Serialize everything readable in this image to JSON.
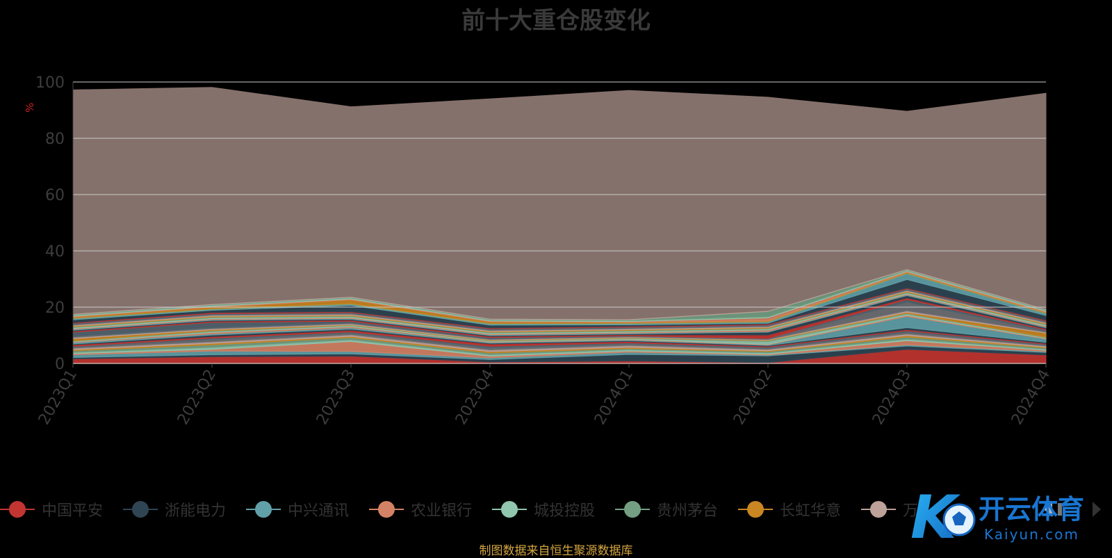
{
  "title": "前十大重仓股变化",
  "footer": "制图数据来自恒生聚源数据库",
  "watermark": {
    "brand_cn": "开云体育",
    "brand_en": "Kaiyun.com",
    "logo_text": "K"
  },
  "colors": {
    "background": "#000000",
    "remainder_fill": "#85716b",
    "grid": "#cccccc",
    "axis_text": "#3d3d3d",
    "unit_color": "#cc2222"
  },
  "legend": [
    {
      "name": "中国平安",
      "color": "#c23531"
    },
    {
      "name": "浙能电力",
      "color": "#2f4554"
    },
    {
      "name": "中兴通讯",
      "color": "#61a0a8"
    },
    {
      "name": "农业银行",
      "color": "#d48265"
    },
    {
      "name": "城投控股",
      "color": "#91c7ae"
    },
    {
      "name": "贵州茅台",
      "color": "#749f83"
    },
    {
      "name": "长虹华意",
      "color": "#ca8622"
    },
    {
      "name": "万..."
    }
  ],
  "chart_data": {
    "type": "area",
    "title": "前十大重仓股变化",
    "ylabel": "%",
    "xlabel": "",
    "ylim": [
      0,
      100
    ],
    "yticks": [
      0,
      20,
      40,
      60,
      80,
      100
    ],
    "grid": true,
    "legend_position": "bottom",
    "categories": [
      "2023Q1",
      "2023Q2",
      "2023Q3",
      "2023Q4",
      "2024Q1",
      "2024Q2",
      "2024Q3",
      "2024Q4"
    ],
    "series": [
      {
        "color": "#c23531",
        "values": [
          1.6,
          2.4,
          2.6,
          0.5,
          0.9,
          0.3,
          5.0,
          3.0
        ]
      },
      {
        "color": "#2f4554",
        "values": [
          0.5,
          0.7,
          0.8,
          0.9,
          2.3,
          2.4,
          1.2,
          0.9
        ]
      },
      {
        "color": "#61a0a8",
        "values": [
          1.0,
          1.3,
          0.9,
          0.6,
          0.8,
          0.3,
          0.4,
          0.4
        ]
      },
      {
        "color": "#d48265",
        "values": [
          0.4,
          0.6,
          3.5,
          0.6,
          0.4,
          0.3,
          1.5,
          0.4
        ]
      },
      {
        "color": "#91c7ae",
        "values": [
          0.4,
          0.7,
          0.6,
          0.5,
          0.5,
          0.4,
          0.5,
          0.3
        ]
      },
      {
        "color": "#749f83",
        "values": [
          0.6,
          0.9,
          0.8,
          0.6,
          0.4,
          0.5,
          0.8,
          0.5
        ]
      },
      {
        "color": "#ca8622",
        "values": [
          0.4,
          0.5,
          0.4,
          0.5,
          0.4,
          0.3,
          0.5,
          0.3
        ]
      },
      {
        "color": "#bda29a",
        "values": [
          0.5,
          0.6,
          0.6,
          0.6,
          0.7,
          0.5,
          0.6,
          0.4
        ]
      },
      {
        "color": "#6e7074",
        "values": [
          0.4,
          0.8,
          0.6,
          0.7,
          0.5,
          0.4,
          0.6,
          0.3
        ]
      },
      {
        "color": "#546570",
        "values": [
          0.3,
          0.5,
          0.4,
          0.6,
          0.4,
          0.4,
          0.5,
          0.3
        ]
      },
      {
        "color": "#c23531",
        "values": [
          0.5,
          0.5,
          0.6,
          0.8,
          0.5,
          0.3,
          0.4,
          0.3
        ]
      },
      {
        "color": "#2f4554",
        "values": [
          0.3,
          0.6,
          0.4,
          0.3,
          0.3,
          0.3,
          0.7,
          0.4
        ]
      },
      {
        "color": "#61a0a8",
        "values": [
          0.5,
          0.4,
          0.5,
          0.3,
          0.3,
          0.2,
          4.0,
          1.2
        ]
      },
      {
        "color": "#d48265",
        "values": [
          0.2,
          0.5,
          0.4,
          0.2,
          0.2,
          0.2,
          0.4,
          0.2
        ]
      },
      {
        "color": "#91c7ae",
        "values": [
          0.2,
          0.3,
          0.3,
          0.2,
          0.2,
          1.0,
          0.4,
          0.2
        ]
      },
      {
        "color": "#749f83",
        "values": [
          0.2,
          0.3,
          0.2,
          0.2,
          0.2,
          0.3,
          0.3,
          0.2
        ]
      },
      {
        "color": "#ca8622",
        "values": [
          0.8,
          0.4,
          0.2,
          0.2,
          0.2,
          0.2,
          0.4,
          1.5
        ]
      },
      {
        "color": "#bda29a",
        "values": [
          0.4,
          0.3,
          0.3,
          0.2,
          0.2,
          0.2,
          0.5,
          0.3
        ]
      },
      {
        "color": "#6e7074",
        "values": [
          0.3,
          0.3,
          0.3,
          0.2,
          0.2,
          0.2,
          3.0,
          0.4
        ]
      },
      {
        "color": "#546570",
        "values": [
          1.6,
          2.0,
          0.6,
          0.5,
          0.2,
          0.2,
          1.0,
          0.4
        ]
      },
      {
        "color": "#c23531",
        "values": [
          0.4,
          0.4,
          0.4,
          0.4,
          0.4,
          1.2,
          0.6,
          0.4
        ]
      },
      {
        "color": "#2f4554",
        "values": [
          0.3,
          0.3,
          0.3,
          0.3,
          0.3,
          1.0,
          0.8,
          0.4
        ]
      },
      {
        "color": "#61a0a8",
        "values": [
          0.3,
          0.3,
          0.3,
          0.3,
          0.3,
          0.3,
          0.3,
          0.3
        ]
      },
      {
        "color": "#d48265",
        "values": [
          0.3,
          0.3,
          0.3,
          0.3,
          0.3,
          0.5,
          0.3,
          0.3
        ]
      },
      {
        "color": "#91c7ae",
        "values": [
          0.3,
          0.3,
          0.3,
          0.3,
          0.3,
          0.3,
          0.3,
          0.3
        ]
      },
      {
        "color": "#749f83",
        "values": [
          0.3,
          0.3,
          0.3,
          0.3,
          0.3,
          0.3,
          0.3,
          0.3
        ]
      },
      {
        "color": "#ca8622",
        "values": [
          0.3,
          0.3,
          0.3,
          0.3,
          0.3,
          0.3,
          0.3,
          0.3
        ]
      },
      {
        "color": "#bda29a",
        "values": [
          0.3,
          0.3,
          0.3,
          0.3,
          0.3,
          0.3,
          0.3,
          0.3
        ]
      },
      {
        "color": "#6e7074",
        "values": [
          0.3,
          0.3,
          0.3,
          0.3,
          0.3,
          0.3,
          0.3,
          0.3
        ]
      },
      {
        "color": "#546570",
        "values": [
          0.3,
          0.3,
          0.3,
          0.3,
          0.3,
          0.3,
          0.3,
          0.3
        ]
      },
      {
        "color": "#c23531",
        "values": [
          0.3,
          0.4,
          0.3,
          0.3,
          0.3,
          0.3,
          0.3,
          0.3
        ]
      },
      {
        "color": "#2f4554",
        "values": [
          1.0,
          0.8,
          2.2,
          1.0,
          0.5,
          0.3,
          3.0,
          1.6
        ]
      },
      {
        "color": "#61a0a8",
        "values": [
          0.3,
          0.2,
          0.3,
          0.3,
          0.3,
          0.3,
          2.0,
          0.6
        ]
      },
      {
        "color": "#749f83",
        "values": [
          0.3,
          0.3,
          0.3,
          0.3,
          0.3,
          0.3,
          0.3,
          0.3
        ]
      },
      {
        "color": "#ca8622",
        "values": [
          0.4,
          0.6,
          1.4,
          0.6,
          0.3,
          0.3,
          0.3,
          0.3
        ]
      },
      {
        "color": "#d48265",
        "values": [
          0.3,
          0.3,
          0.3,
          0.3,
          0.3,
          1.0,
          0.3,
          0.3
        ]
      },
      {
        "color": "#91c7ae",
        "values": [
          0.3,
          0.3,
          0.3,
          0.3,
          0.3,
          0.3,
          0.3,
          0.3
        ]
      },
      {
        "color": "#749f83",
        "values": [
          0.3,
          0.3,
          0.3,
          0.3,
          0.3,
          2.0,
          0.3,
          0.3
        ]
      },
      {
        "color": "#bda29a",
        "values": [
          0.3,
          0.3,
          0.3,
          0.3,
          0.3,
          0.3,
          0.3,
          0.3
        ]
      },
      {
        "color": "#85716b",
        "values": [
          79.5,
          76.9,
          67.4,
          78.0,
          81.2,
          75.8,
          56.0,
          76.6
        ]
      }
    ]
  }
}
